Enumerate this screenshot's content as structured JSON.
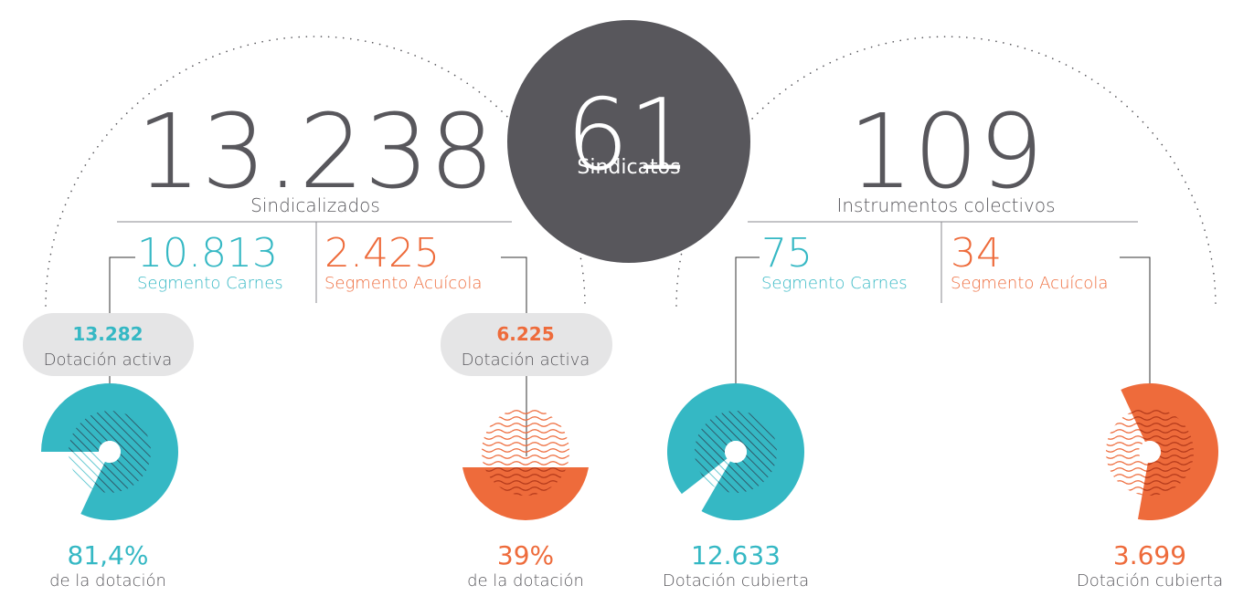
{
  "center": {
    "number": "61",
    "label": "Sindicatos"
  },
  "left": {
    "number": "13.238",
    "label": "Sindicalizados",
    "segments": [
      {
        "number": "10.813",
        "label": "Segmento Carnes"
      },
      {
        "number": "2.425",
        "label": "Segmento Acuícola"
      }
    ],
    "pills": [
      {
        "number": "13.282",
        "label": "Dotación activa"
      },
      {
        "number": "6.225",
        "label": "Dotación activa"
      }
    ],
    "results": [
      {
        "number": "81,4%",
        "label": "de la dotación"
      },
      {
        "number": "39%",
        "label": "de la dotación"
      }
    ]
  },
  "right": {
    "number": "109",
    "label": "Instrumentos colectivos",
    "segments": [
      {
        "number": "75",
        "label": "Segmento Carnes"
      },
      {
        "number": "34",
        "label": "Segmento Acuícola"
      }
    ],
    "results": [
      {
        "number": "12.633",
        "label": "Dotación cubierta"
      },
      {
        "number": "3.699",
        "label": "Dotación cubierta"
      }
    ]
  }
}
